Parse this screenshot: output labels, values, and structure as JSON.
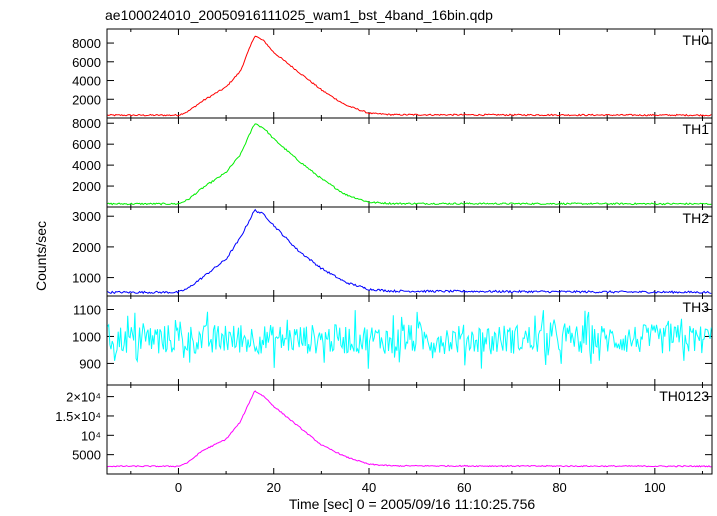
{
  "title": "ae100024010_20050916111025_wam1_bst_4band_16bin.qdp",
  "xlabel": "Time [sec] 0 = 2005/09/16 11:10:25.756",
  "ylabel": "Counts/sec",
  "chart_data": [
    {
      "type": "line",
      "panel": "TH0",
      "series": [
        {
          "name": "TH0",
          "color": "#ff0000"
        }
      ],
      "xlim": [
        -15,
        112
      ],
      "ylim": [
        0,
        9500
      ],
      "xticks": [
        0,
        20,
        40,
        60,
        80,
        100
      ],
      "yticks": [
        2000,
        4000,
        6000,
        8000
      ],
      "ytick_labels": [
        "2000",
        "4000",
        "6000",
        "8000"
      ],
      "background": 300,
      "peak": 8800,
      "peak_time": 16,
      "noise": 80,
      "outline": [
        [
          -15,
          300
        ],
        [
          0,
          300
        ],
        [
          2,
          700
        ],
        [
          5,
          1800
        ],
        [
          10,
          3300
        ],
        [
          13,
          5000
        ],
        [
          16,
          8800
        ],
        [
          18,
          8200
        ],
        [
          20,
          7000
        ],
        [
          25,
          5000
        ],
        [
          30,
          3000
        ],
        [
          35,
          1400
        ],
        [
          40,
          500
        ],
        [
          45,
          350
        ],
        [
          112,
          300
        ]
      ]
    },
    {
      "type": "line",
      "panel": "TH1",
      "series": [
        {
          "name": "TH1",
          "color": "#00ee00"
        }
      ],
      "xlim": [
        -15,
        112
      ],
      "ylim": [
        0,
        8500
      ],
      "xticks": [
        0,
        20,
        40,
        60,
        80,
        100
      ],
      "yticks": [
        2000,
        4000,
        6000,
        8000
      ],
      "ytick_labels": [
        "2000",
        "4000",
        "6000",
        "8000"
      ],
      "background": 300,
      "peak": 8000,
      "peak_time": 16,
      "noise": 80,
      "outline": [
        [
          -15,
          300
        ],
        [
          0,
          300
        ],
        [
          2,
          700
        ],
        [
          5,
          1800
        ],
        [
          10,
          3300
        ],
        [
          13,
          5000
        ],
        [
          16,
          8000
        ],
        [
          18,
          7500
        ],
        [
          20,
          6500
        ],
        [
          25,
          4500
        ],
        [
          30,
          2700
        ],
        [
          35,
          1200
        ],
        [
          40,
          450
        ],
        [
          45,
          330
        ],
        [
          112,
          300
        ]
      ]
    },
    {
      "type": "line",
      "panel": "TH2",
      "series": [
        {
          "name": "TH2",
          "color": "#0000ff"
        }
      ],
      "xlim": [
        -15,
        112
      ],
      "ylim": [
        400,
        3300
      ],
      "xticks": [
        0,
        20,
        40,
        60,
        80,
        100
      ],
      "yticks": [
        1000,
        2000,
        3000
      ],
      "ytick_labels": [
        "1000",
        "2000",
        "3000"
      ],
      "background": 520,
      "peak": 3200,
      "peak_time": 16,
      "noise": 35,
      "outline": [
        [
          -15,
          520
        ],
        [
          0,
          520
        ],
        [
          2,
          650
        ],
        [
          5,
          1000
        ],
        [
          10,
          1600
        ],
        [
          13,
          2300
        ],
        [
          16,
          3200
        ],
        [
          18,
          3050
        ],
        [
          20,
          2700
        ],
        [
          25,
          1900
        ],
        [
          30,
          1300
        ],
        [
          35,
          850
        ],
        [
          40,
          620
        ],
        [
          45,
          560
        ],
        [
          112,
          520
        ]
      ]
    },
    {
      "type": "line",
      "panel": "TH3",
      "series": [
        {
          "name": "TH3",
          "color": "#00ffff"
        }
      ],
      "xlim": [
        -15,
        112
      ],
      "ylim": [
        820,
        1150
      ],
      "xticks": [
        0,
        20,
        40,
        60,
        80,
        100
      ],
      "yticks": [
        900,
        1000,
        1100
      ],
      "ytick_labels": [
        "900",
        "1000",
        "1100"
      ],
      "background": 990,
      "noise": 55
    },
    {
      "type": "line",
      "panel": "TH0123",
      "series": [
        {
          "name": "TH0123",
          "color": "#ff00ff"
        }
      ],
      "xlim": [
        -15,
        112
      ],
      "ylim": [
        0,
        23000
      ],
      "xticks": [
        0,
        20,
        40,
        60,
        80,
        100
      ],
      "yticks": [
        5000,
        10000,
        15000,
        20000
      ],
      "ytick_labels": [
        "5000",
        "10⁴",
        "1.5×10⁴",
        "2×10⁴"
      ],
      "background": 2000,
      "peak": 21500,
      "peak_time": 16,
      "noise": 150,
      "outline": [
        [
          -15,
          2000
        ],
        [
          0,
          2000
        ],
        [
          2,
          3000
        ],
        [
          5,
          6000
        ],
        [
          10,
          9000
        ],
        [
          13,
          13500
        ],
        [
          16,
          21500
        ],
        [
          18,
          20000
        ],
        [
          20,
          17500
        ],
        [
          25,
          12500
        ],
        [
          30,
          7500
        ],
        [
          35,
          4500
        ],
        [
          40,
          2500
        ],
        [
          45,
          2100
        ],
        [
          112,
          2000
        ]
      ]
    }
  ]
}
